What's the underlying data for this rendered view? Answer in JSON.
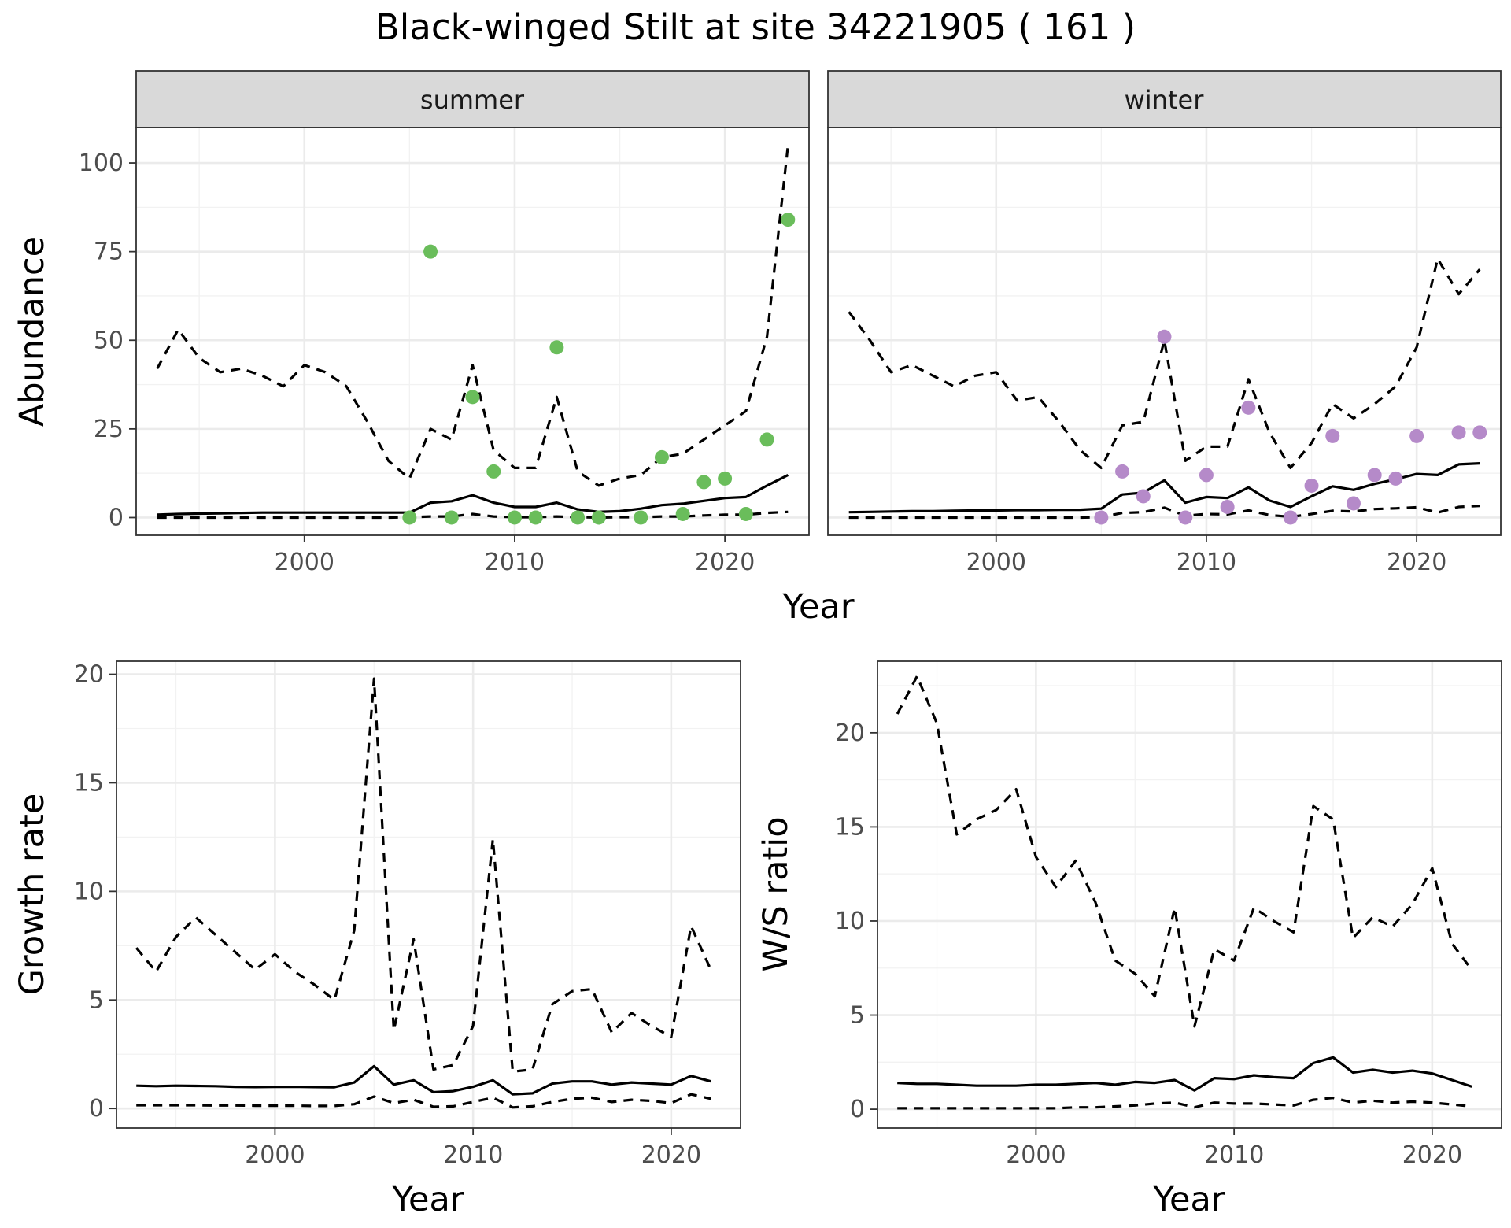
{
  "title": "Black-winged Stilt at site 34221905 ( 161 )",
  "colors": {
    "summer": "#6abd5b",
    "winter": "#b58ac9",
    "line": "#000000"
  },
  "chart_data": [
    {
      "type": "line",
      "id": "abundance",
      "facets": [
        "summer",
        "winter"
      ],
      "xlabel": "Year",
      "ylabel": "Abundance",
      "xlim": [
        1992,
        2024
      ],
      "ylim": [
        -5,
        110
      ],
      "xticks": [
        2000,
        2010,
        2020
      ],
      "yticks": [
        0,
        25,
        50,
        75,
        100
      ],
      "grid": true,
      "panels": [
        {
          "strip": "summer",
          "point_color": "summer",
          "x": [
            1993,
            1994,
            1995,
            1996,
            1997,
            1998,
            1999,
            2000,
            2001,
            2002,
            2003,
            2004,
            2005,
            2006,
            2007,
            2008,
            2009,
            2010,
            2011,
            2012,
            2013,
            2014,
            2015,
            2016,
            2017,
            2018,
            2019,
            2020,
            2021,
            2022,
            2023
          ],
          "mean": [
            0.8,
            1.0,
            1.1,
            1.2,
            1.3,
            1.4,
            1.4,
            1.4,
            1.4,
            1.4,
            1.4,
            1.4,
            1.4,
            4.2,
            4.6,
            6.3,
            4.2,
            3.0,
            3.0,
            4.2,
            2.3,
            1.6,
            1.8,
            2.5,
            3.5,
            3.9,
            4.7,
            5.5,
            5.8,
            9.0,
            12.0
          ],
          "upper": [
            42,
            53,
            45,
            41,
            42,
            40,
            37,
            43,
            41,
            37,
            27,
            16,
            11,
            25,
            22,
            43,
            19,
            14,
            14,
            34,
            13,
            9,
            11,
            12,
            17,
            18,
            22,
            26,
            30,
            51,
            105
          ],
          "lower": [
            0,
            0,
            0,
            0,
            0,
            0,
            0,
            0,
            0,
            0,
            0,
            0,
            0.1,
            0.3,
            0.3,
            1.0,
            0.3,
            0.1,
            0.1,
            0.3,
            0.1,
            0,
            0.1,
            0.1,
            0.3,
            0.3,
            0.6,
            0.8,
            0.8,
            1.3,
            1.6
          ],
          "points": [
            {
              "x": 2005,
              "y": 0
            },
            {
              "x": 2006,
              "y": 75
            },
            {
              "x": 2007,
              "y": 0
            },
            {
              "x": 2008,
              "y": 34
            },
            {
              "x": 2009,
              "y": 13
            },
            {
              "x": 2010,
              "y": 0
            },
            {
              "x": 2011,
              "y": 0
            },
            {
              "x": 2012,
              "y": 48
            },
            {
              "x": 2013,
              "y": 0
            },
            {
              "x": 2014,
              "y": 0
            },
            {
              "x": 2016,
              "y": 0
            },
            {
              "x": 2017,
              "y": 17
            },
            {
              "x": 2018,
              "y": 1
            },
            {
              "x": 2019,
              "y": 10
            },
            {
              "x": 2020,
              "y": 11
            },
            {
              "x": 2021,
              "y": 1
            },
            {
              "x": 2022,
              "y": 22
            },
            {
              "x": 2023,
              "y": 84
            }
          ]
        },
        {
          "strip": "winter",
          "point_color": "winter",
          "x": [
            1993,
            1994,
            1995,
            1996,
            1997,
            1998,
            1999,
            2000,
            2001,
            2002,
            2003,
            2004,
            2005,
            2006,
            2007,
            2008,
            2009,
            2010,
            2011,
            2012,
            2013,
            2014,
            2015,
            2016,
            2017,
            2018,
            2019,
            2020,
            2021,
            2022,
            2023
          ],
          "mean": [
            1.5,
            1.6,
            1.7,
            1.8,
            1.8,
            1.9,
            2.0,
            2.0,
            2.1,
            2.1,
            2.2,
            2.2,
            2.5,
            6.5,
            7.0,
            10.5,
            4.2,
            5.8,
            5.5,
            8.5,
            4.8,
            3.0,
            6.0,
            8.8,
            7.8,
            9.5,
            10.8,
            12.3,
            12.0,
            15.0,
            15.3
          ],
          "upper": [
            58,
            50,
            41,
            43,
            40,
            37,
            40,
            41,
            33,
            34,
            27,
            19,
            14,
            26,
            27,
            50,
            16,
            20,
            20,
            39,
            24,
            14,
            21,
            32,
            28,
            32,
            37,
            48,
            73,
            63,
            70
          ],
          "lower": [
            0,
            0,
            0,
            0,
            0,
            0,
            0,
            0,
            0,
            0,
            0,
            0,
            0.1,
            1.3,
            1.5,
            2.8,
            0.5,
            1.0,
            0.9,
            2.0,
            0.7,
            0.2,
            1.0,
            1.9,
            1.7,
            2.4,
            2.6,
            2.9,
            1.4,
            3.0,
            3.3
          ],
          "points": [
            {
              "x": 2005,
              "y": 0
            },
            {
              "x": 2006,
              "y": 13
            },
            {
              "x": 2007,
              "y": 6
            },
            {
              "x": 2008,
              "y": 51
            },
            {
              "x": 2009,
              "y": 0
            },
            {
              "x": 2010,
              "y": 12
            },
            {
              "x": 2011,
              "y": 3
            },
            {
              "x": 2012,
              "y": 31
            },
            {
              "x": 2014,
              "y": 0
            },
            {
              "x": 2015,
              "y": 9
            },
            {
              "x": 2016,
              "y": 23
            },
            {
              "x": 2017,
              "y": 4
            },
            {
              "x": 2018,
              "y": 12
            },
            {
              "x": 2019,
              "y": 11
            },
            {
              "x": 2020,
              "y": 23
            },
            {
              "x": 2022,
              "y": 24
            },
            {
              "x": 2023,
              "y": 24
            }
          ]
        }
      ]
    },
    {
      "type": "line",
      "id": "growth",
      "xlabel": "Year",
      "ylabel": "Growth rate",
      "xlim": [
        1992,
        2023.5
      ],
      "ylim": [
        -0.9,
        20.6
      ],
      "xticks": [
        2000,
        2010,
        2020
      ],
      "yticks": [
        0,
        5,
        10,
        15,
        20
      ],
      "grid": true,
      "x": [
        1993,
        1994,
        1995,
        1996,
        1997,
        1998,
        1999,
        2000,
        2001,
        2002,
        2003,
        2004,
        2005,
        2006,
        2007,
        2008,
        2009,
        2010,
        2011,
        2012,
        2013,
        2014,
        2015,
        2016,
        2017,
        2018,
        2019,
        2020,
        2021,
        2022
      ],
      "mean": [
        1.05,
        1.03,
        1.05,
        1.04,
        1.03,
        1.0,
        0.99,
        1.0,
        1.0,
        0.99,
        0.98,
        1.2,
        1.95,
        1.1,
        1.3,
        0.75,
        0.8,
        1.0,
        1.3,
        0.65,
        0.7,
        1.15,
        1.25,
        1.25,
        1.1,
        1.2,
        1.15,
        1.1,
        1.5,
        1.25
      ],
      "upper": [
        7.4,
        6.3,
        7.9,
        8.8,
        8.0,
        7.2,
        6.4,
        7.1,
        6.3,
        5.7,
        5.0,
        8.2,
        19.8,
        3.6,
        7.8,
        1.8,
        2.0,
        3.8,
        12.4,
        1.7,
        1.8,
        4.8,
        5.4,
        5.5,
        3.5,
        4.4,
        3.8,
        3.3,
        8.4,
        6.4
      ],
      "lower": [
        0.15,
        0.15,
        0.15,
        0.15,
        0.14,
        0.14,
        0.13,
        0.13,
        0.13,
        0.12,
        0.12,
        0.2,
        0.55,
        0.25,
        0.4,
        0.08,
        0.1,
        0.3,
        0.5,
        0.05,
        0.1,
        0.3,
        0.45,
        0.5,
        0.3,
        0.4,
        0.35,
        0.25,
        0.65,
        0.45
      ]
    },
    {
      "type": "line",
      "id": "ws_ratio",
      "xlabel": "Year",
      "ylabel": "W/S ratio",
      "xlim": [
        1992,
        2023.5
      ],
      "ylim": [
        -1.0,
        23.8
      ],
      "xticks": [
        2000,
        2010,
        2020
      ],
      "yticks": [
        0,
        5,
        10,
        15,
        20
      ],
      "grid": true,
      "x": [
        1993,
        1994,
        1995,
        1996,
        1997,
        1998,
        1999,
        2000,
        2001,
        2002,
        2003,
        2004,
        2005,
        2006,
        2007,
        2008,
        2009,
        2010,
        2011,
        2012,
        2013,
        2014,
        2015,
        2016,
        2017,
        2018,
        2019,
        2020,
        2021,
        2022
      ],
      "mean": [
        1.4,
        1.35,
        1.35,
        1.3,
        1.25,
        1.25,
        1.25,
        1.3,
        1.3,
        1.35,
        1.4,
        1.3,
        1.45,
        1.4,
        1.55,
        1.0,
        1.65,
        1.6,
        1.8,
        1.7,
        1.65,
        2.45,
        2.75,
        1.95,
        2.1,
        1.95,
        2.05,
        1.9,
        1.55,
        1.2
      ],
      "upper": [
        21,
        23,
        20.5,
        14.6,
        15.4,
        15.9,
        17,
        13.4,
        11.8,
        13.2,
        11,
        7.9,
        7.2,
        6,
        10.7,
        4.4,
        8.5,
        7.9,
        10.7,
        10,
        9.4,
        16.1,
        15.4,
        9.1,
        10.2,
        9.7,
        10.9,
        12.8,
        8.8,
        7.4
      ],
      "lower": [
        0.05,
        0.05,
        0.05,
        0.05,
        0.05,
        0.05,
        0.05,
        0.05,
        0.05,
        0.1,
        0.1,
        0.15,
        0.2,
        0.3,
        0.35,
        0.1,
        0.35,
        0.3,
        0.3,
        0.25,
        0.2,
        0.5,
        0.6,
        0.35,
        0.45,
        0.35,
        0.4,
        0.35,
        0.25,
        0.15
      ]
    }
  ]
}
